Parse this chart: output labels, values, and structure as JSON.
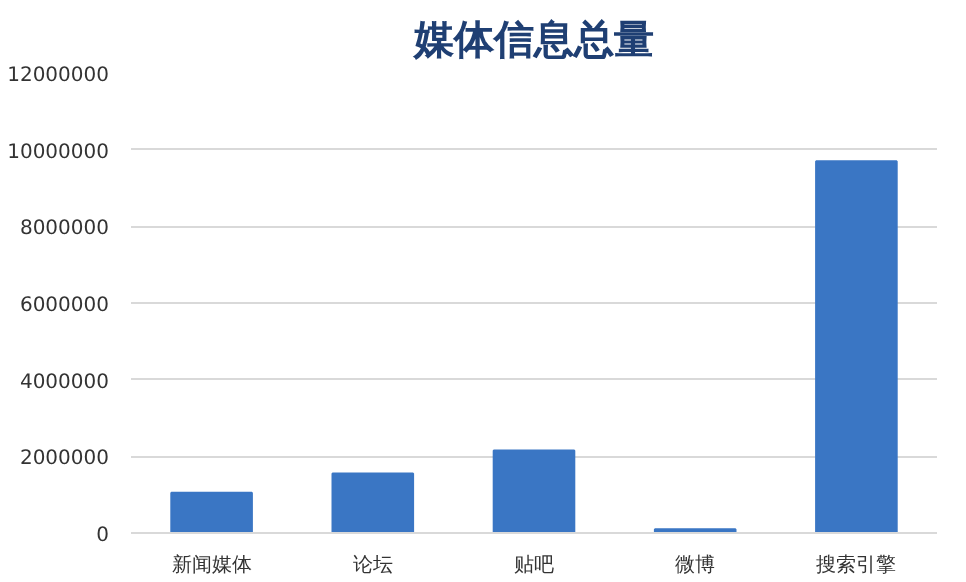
{
  "chart_data": {
    "type": "bar",
    "title": "媒体信息总量",
    "categories": [
      "新闻媒体",
      "论坛",
      "贴吧",
      "微博",
      "搜索引擎"
    ],
    "values": [
      1050000,
      1550000,
      2150000,
      100000,
      9700000
    ],
    "color": "#3a76c4",
    "ylim": [
      0,
      12000000
    ],
    "yticks": [
      0,
      2000000,
      4000000,
      6000000,
      8000000,
      10000000,
      12000000
    ],
    "grid": "y"
  }
}
